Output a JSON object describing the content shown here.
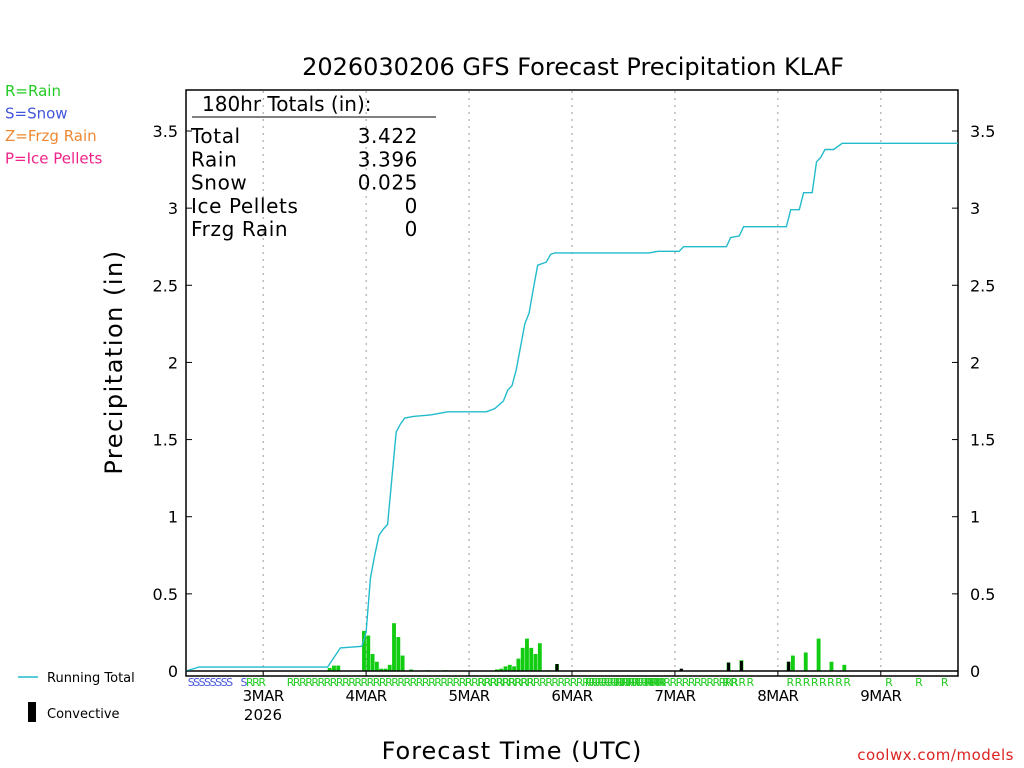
{
  "chart_data": {
    "type": "bar",
    "title": "2026030206 GFS Forecast Precipitation KLAF",
    "xlabel": "Forecast Time (UTC)",
    "ylabel": "Precipitation (in)",
    "ylim": [
      0,
      3.75
    ],
    "xlim_hours": [
      0,
      180
    ],
    "y_ticks": [
      {
        "value": 0,
        "label": "0"
      },
      {
        "value": 0.5,
        "label": "0.5"
      },
      {
        "value": 1,
        "label": "1"
      },
      {
        "value": 1.5,
        "label": "1.5"
      },
      {
        "value": 2,
        "label": "2"
      },
      {
        "value": 2.5,
        "label": "2.5"
      },
      {
        "value": 3,
        "label": "3"
      },
      {
        "value": 3.5,
        "label": "3.5"
      }
    ],
    "x_ticks": [
      {
        "hour": 18,
        "label": "3MAR"
      },
      {
        "hour": 42,
        "label": "4MAR"
      },
      {
        "hour": 66,
        "label": "5MAR"
      },
      {
        "hour": 90,
        "label": "6MAR"
      },
      {
        "hour": 114,
        "label": "7MAR"
      },
      {
        "hour": 138,
        "label": "8MAR"
      },
      {
        "hour": 162,
        "label": "9MAR"
      }
    ],
    "year_label": "2026",
    "legend_types": [
      {
        "label": "R=Rain",
        "color": "#22cc22"
      },
      {
        "label": "S=Snow",
        "color": "#4455dd"
      },
      {
        "label": "Z=Frzg Rain",
        "color": "#ee8833"
      },
      {
        "label": "P=Ice Pellets",
        "color": "#ee2288"
      }
    ],
    "legend_bottom": {
      "running_total": "Running Total",
      "convective": "Convective"
    },
    "totals_box": {
      "title": "180hr Totals (in):",
      "rows": [
        {
          "label": "Total",
          "value": "3.422"
        },
        {
          "label": "Rain",
          "value": "3.396"
        },
        {
          "label": "Snow",
          "value": "0.025"
        },
        {
          "label": "Ice Pellets",
          "value": "0"
        },
        {
          "label": "Frzg Rain",
          "value": "0"
        }
      ]
    },
    "series": [
      {
        "name": "Running Total",
        "color": "#22bbcc",
        "points": [
          [
            0,
            0
          ],
          [
            3,
            0.025
          ],
          [
            33,
            0.025
          ],
          [
            36,
            0.15
          ],
          [
            41,
            0.16
          ],
          [
            42,
            0.25
          ],
          [
            43,
            0.6
          ],
          [
            44,
            0.75
          ],
          [
            45,
            0.88
          ],
          [
            46,
            0.92
          ],
          [
            47,
            0.95
          ],
          [
            48,
            1.25
          ],
          [
            49,
            1.55
          ],
          [
            50,
            1.6
          ],
          [
            51,
            1.64
          ],
          [
            53,
            1.65
          ],
          [
            57,
            1.66
          ],
          [
            61,
            1.68
          ],
          [
            70,
            1.68
          ],
          [
            72,
            1.7
          ],
          [
            74,
            1.75
          ],
          [
            75,
            1.82
          ],
          [
            76,
            1.85
          ],
          [
            77,
            1.95
          ],
          [
            78,
            2.1
          ],
          [
            79,
            2.25
          ],
          [
            80,
            2.32
          ],
          [
            81,
            2.48
          ],
          [
            82,
            2.63
          ],
          [
            84,
            2.65
          ],
          [
            85,
            2.7
          ],
          [
            86,
            2.71
          ],
          [
            108,
            2.71
          ],
          [
            110,
            2.72
          ],
          [
            115,
            2.72
          ],
          [
            116,
            2.75
          ],
          [
            126,
            2.75
          ],
          [
            127,
            2.81
          ],
          [
            129,
            2.82
          ],
          [
            130,
            2.88
          ],
          [
            140,
            2.88
          ],
          [
            141,
            2.99
          ],
          [
            143,
            2.99
          ],
          [
            144,
            3.1
          ],
          [
            146,
            3.1
          ],
          [
            147,
            3.3
          ],
          [
            148,
            3.33
          ],
          [
            149,
            3.38
          ],
          [
            151,
            3.38
          ],
          [
            153,
            3.42
          ],
          [
            180,
            3.42
          ]
        ]
      },
      {
        "name": "Precipitation",
        "bars": [
          [
            33.5,
            0.02
          ],
          [
            34.5,
            0.035
          ],
          [
            35.5,
            0.035
          ],
          [
            41.5,
            0.26
          ],
          [
            42.5,
            0.23
          ],
          [
            43.5,
            0.11
          ],
          [
            44.5,
            0.06
          ],
          [
            45.5,
            0.015
          ],
          [
            46.5,
            0.015
          ],
          [
            47.5,
            0.04
          ],
          [
            48.5,
            0.31
          ],
          [
            49.5,
            0.22
          ],
          [
            50.5,
            0.1
          ],
          [
            52.5,
            0.01
          ],
          [
            56.5,
            0.005
          ],
          [
            60.5,
            0.005
          ],
          [
            72.5,
            0.01
          ],
          [
            73.5,
            0.015
          ],
          [
            74.5,
            0.03
          ],
          [
            75.5,
            0.04
          ],
          [
            76.5,
            0.03
          ],
          [
            77.5,
            0.08
          ],
          [
            78.5,
            0.15
          ],
          [
            79.5,
            0.21
          ],
          [
            80.5,
            0.15
          ],
          [
            81.5,
            0.11
          ],
          [
            82.5,
            0.18
          ],
          [
            84.5,
            0.005
          ],
          [
            86.5,
            0.045
          ],
          [
            115.5,
            0.01
          ],
          [
            126.5,
            0.055
          ],
          [
            129.5,
            0.07
          ],
          [
            140.5,
            0.06
          ],
          [
            141.5,
            0.1
          ],
          [
            144.5,
            0.12
          ],
          [
            147.5,
            0.21
          ],
          [
            150.5,
            0.06
          ],
          [
            153.5,
            0.04
          ]
        ]
      },
      {
        "name": "Convective",
        "color": "#000000",
        "bars": [
          [
            86.5,
            0.045
          ],
          [
            115.5,
            0.015
          ],
          [
            126.5,
            0.055
          ],
          [
            129.5,
            0.065
          ],
          [
            140.5,
            0.06
          ]
        ]
      }
    ],
    "type_markers": [
      {
        "text": "SSSSSSSS",
        "hour": 0.4,
        "color": "#4455dd"
      },
      {
        "text": "S",
        "hour": 12.7,
        "color": "#4455dd"
      },
      {
        "text": "RRR",
        "hour": 14.0,
        "color": "#22cc22"
      },
      {
        "text": "RRRRRRRRRRRRRRRRRRRRRRRRRRRRRRRRRRRRRRRR",
        "hour": 23.5,
        "color": "#22cc22"
      },
      {
        "text": "R",
        "hour": 65.0,
        "color": "#22cc22"
      },
      {
        "text": "RRRRRRRRRRRRRRRRRRRRRRRRRRRRRR",
        "hour": 68.0,
        "color": "#22cc22"
      },
      {
        "text": "RRRRRRRRRRRRR",
        "hour": 93.0,
        "color": "#22cc22"
      },
      {
        "text": "RRR",
        "hour": 100.0,
        "color": "#22cc22"
      },
      {
        "text": "R",
        "hour": 104.0,
        "color": "#22cc22"
      },
      {
        "text": "RRRRRRRRRRRRRRR",
        "hour": 107.0,
        "color": "#22cc22"
      },
      {
        "text": "R R R R",
        "hour": 125.0,
        "color": "#22cc22"
      },
      {
        "text": "R R R R R R R R",
        "hour": 140.0,
        "color": "#22cc22"
      },
      {
        "text": "R",
        "hour": 163.0,
        "color": "#22cc22"
      },
      {
        "text": "R",
        "hour": 170.0,
        "color": "#22cc22"
      },
      {
        "text": "R",
        "hour": 176.0,
        "color": "#22cc22"
      }
    ],
    "bar_color": "#11cc11",
    "source_credit": "coolwx.com/models"
  }
}
